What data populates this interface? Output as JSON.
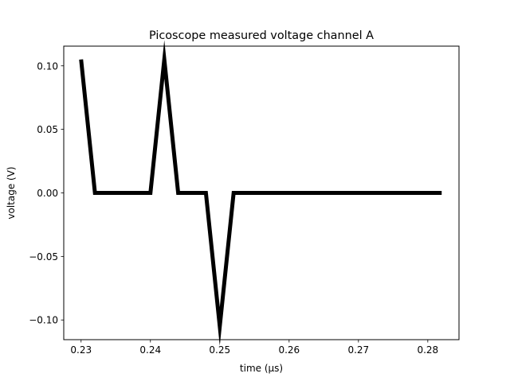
{
  "chart_data": {
    "type": "line",
    "title": "Picoscope measured voltage channel A",
    "xlabel": "time (µs)",
    "ylabel": "voltage (V)",
    "xlim": [
      0.2275,
      0.2845
    ],
    "ylim": [
      -0.1155,
      0.1155
    ],
    "x_ticks": [
      {
        "value": 0.23,
        "label": "0.23"
      },
      {
        "value": 0.24,
        "label": "0.24"
      },
      {
        "value": 0.25,
        "label": "0.25"
      },
      {
        "value": 0.26,
        "label": "0.26"
      },
      {
        "value": 0.27,
        "label": "0.27"
      },
      {
        "value": 0.28,
        "label": "0.28"
      }
    ],
    "y_ticks": [
      {
        "value": 0.1,
        "label": "0.10"
      },
      {
        "value": 0.05,
        "label": "0.05"
      },
      {
        "value": 0.0,
        "label": "0.00"
      },
      {
        "value": -0.05,
        "label": "−0.05"
      },
      {
        "value": -0.1,
        "label": "−0.10"
      }
    ],
    "grid": false,
    "legend": "none",
    "series": [
      {
        "color": "#000000",
        "x": [
          0.23,
          0.232,
          0.234,
          0.236,
          0.238,
          0.24,
          0.242,
          0.244,
          0.246,
          0.248,
          0.25,
          0.252,
          0.254,
          0.256,
          0.258,
          0.26,
          0.262,
          0.264,
          0.266,
          0.268,
          0.27,
          0.272,
          0.274,
          0.276,
          0.278,
          0.28,
          0.282
        ],
        "y": [
          0.105,
          0.0,
          0.0,
          0.0,
          0.0,
          0.0,
          0.105,
          0.0,
          0.0,
          0.0,
          -0.105,
          0.0,
          0.0,
          0.0,
          0.0,
          0.0,
          0.0,
          0.0,
          0.0,
          0.0,
          0.0,
          0.0,
          0.0,
          0.0,
          0.0,
          0.0,
          0.0
        ]
      }
    ]
  }
}
